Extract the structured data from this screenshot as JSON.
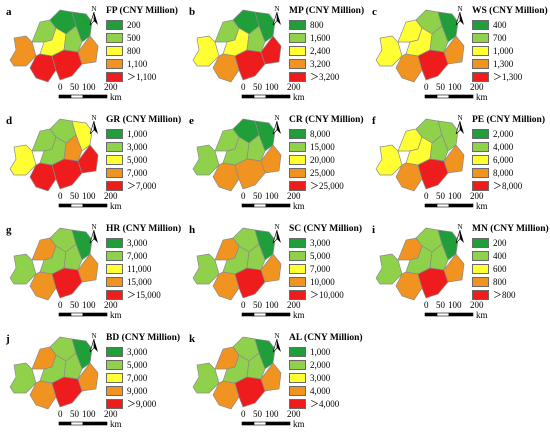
{
  "colors": [
    "#1f9e3a",
    "#8fd14b",
    "#ffff33",
    "#f09320",
    "#ee1c1c"
  ],
  "scale_bar": {
    "ticks": [
      "0",
      "50",
      "100",
      "200"
    ],
    "unit": "km"
  },
  "north_arrow": {
    "letter": "N"
  },
  "panels": [
    {
      "id": "a",
      "title": "FP (CNY Million)",
      "legend": [
        "200",
        "500",
        "800",
        "1,100",
        "＞1,100"
      ],
      "regions": [
        3,
        1,
        0,
        0,
        2,
        1,
        4,
        4,
        3
      ]
    },
    {
      "id": "b",
      "title": "MP (CNY Million)",
      "legend": [
        "800",
        "1,600",
        "2,400",
        "3,200",
        "＞3,200"
      ],
      "regions": [
        2,
        1,
        0,
        0,
        2,
        1,
        3,
        4,
        4
      ]
    },
    {
      "id": "c",
      "title": "WS (CNY Million)",
      "legend": [
        "400",
        "700",
        "1,000",
        "1,300",
        "＞1,300"
      ],
      "regions": [
        2,
        2,
        1,
        0,
        2,
        1,
        3,
        4,
        3
      ]
    },
    {
      "id": "d",
      "title": "GR (CNY Million)",
      "legend": [
        "1,000",
        "3,000",
        "5,000",
        "7,000",
        "＞7,000"
      ],
      "regions": [
        2,
        1,
        1,
        2,
        1,
        3,
        4,
        4,
        4
      ]
    },
    {
      "id": "e",
      "title": "CR (CNY Million)",
      "legend": [
        "8,000",
        "15,000",
        "20,000",
        "25,000",
        "＞25,000"
      ],
      "regions": [
        1,
        1,
        0,
        0,
        1,
        1,
        3,
        3,
        3
      ]
    },
    {
      "id": "f",
      "title": "PE (CNY Million)",
      "legend": [
        "2,000",
        "4,000",
        "6,000",
        "8,000",
        "＞8,000"
      ],
      "regions": [
        2,
        2,
        1,
        1,
        2,
        1,
        3,
        4,
        3
      ]
    },
    {
      "id": "g",
      "title": "HR (CNY Million)",
      "legend": [
        "3,000",
        "7,000",
        "11,000",
        "15,000",
        "＞15,000"
      ],
      "regions": [
        1,
        3,
        1,
        0,
        1,
        1,
        3,
        4,
        3
      ]
    },
    {
      "id": "h",
      "title": "SC (CNY Million)",
      "legend": [
        "3,000",
        "5,000",
        "7,000",
        "10,000",
        "＞10,000"
      ],
      "regions": [
        1,
        3,
        1,
        0,
        1,
        1,
        3,
        4,
        3
      ]
    },
    {
      "id": "i",
      "title": "MN (CNY Million)",
      "legend": [
        "200",
        "400",
        "600",
        "800",
        "＞800"
      ],
      "regions": [
        1,
        3,
        1,
        0,
        1,
        1,
        3,
        4,
        3
      ]
    },
    {
      "id": "j",
      "title": "BD (CNY Million)",
      "legend": [
        "3,000",
        "5,000",
        "7,000",
        "9,000",
        "＞9,000"
      ],
      "regions": [
        1,
        3,
        1,
        0,
        1,
        1,
        3,
        4,
        3
      ]
    },
    {
      "id": "k",
      "title": "AL (CNY Million)",
      "legend": [
        "1,000",
        "2,000",
        "3,000",
        "4,000",
        "＞4,000"
      ],
      "regions": [
        1,
        3,
        1,
        0,
        1,
        1,
        3,
        4,
        3
      ]
    }
  ]
}
